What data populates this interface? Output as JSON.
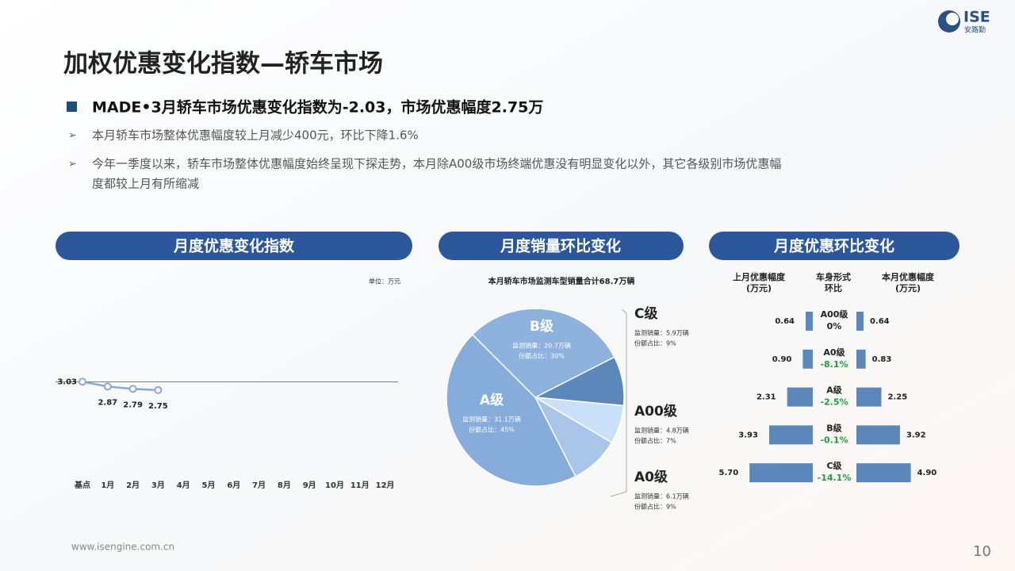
{
  "header": {
    "title": "加权优惠变化指数—轿车市场",
    "logo": "ISE",
    "logo_sub": "安路勤"
  },
  "headline": "MADE•3月轿车市场优惠变化指数为-2.03，市场优惠幅度2.75万",
  "bullets": [
    [
      "本月轿车市场整体优惠幅度较上月减少400元，环比下降1.6%"
    ],
    [
      "今年一季度以来，轿车市场整体优惠幅度始终呈现下探走势，本月除A00级市场终端优惠没有明显变化以外，其它各级别市场优惠幅",
      "度都较上月有所缩减"
    ]
  ],
  "footer": {
    "url": "www.isengine.com.cn",
    "page": "10"
  },
  "chart_data": [
    {
      "type": "line",
      "title": "月度优惠变化指数",
      "unit": "单位：万元",
      "categories": [
        "基点",
        "1月",
        "2月",
        "3月",
        "4月",
        "5月",
        "6月",
        "7月",
        "8月",
        "9月",
        "10月",
        "11月",
        "12月"
      ],
      "values": [
        3.03,
        2.87,
        2.79,
        2.75,
        null,
        null,
        null,
        null,
        null,
        null,
        null,
        null,
        null
      ],
      "color": "#8aa8d0",
      "ylim": [
        0,
        6.4
      ]
    },
    {
      "type": "pie",
      "title": "月度销量环比变化",
      "subtitle": "本月轿车市场监测车型销量合计68.7万辆",
      "categories": [
        "C级",
        "A00级",
        "A0级",
        "A级",
        "B级"
      ],
      "values": [
        9,
        7,
        9,
        45,
        30
      ],
      "value_labels": [
        "份额占比：9%",
        "份额占比：7%",
        "份额占比：9%",
        "份额占比：45%",
        "份额占比：30%"
      ],
      "volume_labels": [
        "监测销量：5.9万辆",
        "监测销量：4.8万辆",
        "监测销量：6.1万辆",
        "监测销量：31.1万辆",
        "监测销量：20.7万辆"
      ],
      "colors": [
        "#5b87bb",
        "#c9e0f7",
        "#a9c6e8",
        "#86acdc",
        "#8db2de"
      ]
    },
    {
      "type": "butterfly",
      "title": "月度优惠环比变化",
      "column_headers": [
        [
          "上月优惠幅度",
          "(万元)"
        ],
        [
          "车身形式",
          "环比"
        ],
        [
          "本月优惠幅度",
          "(万元)"
        ]
      ],
      "categories": [
        "A00级",
        "A0级",
        "A级",
        "B级",
        "C级"
      ],
      "series": [
        {
          "name": "上月优惠幅度",
          "color": "#5b87bb",
          "values": [
            0.64,
            0.9,
            2.31,
            3.93,
            5.7
          ],
          "value_labels": [
            "0.64",
            "0.90",
            "2.31",
            "3.93",
            "5.70"
          ]
        },
        {
          "name": "本月优惠幅度",
          "color": "#5b87bb",
          "values": [
            0.64,
            0.83,
            2.25,
            3.92,
            4.9
          ],
          "value_labels": [
            "0.64",
            "0.83",
            "2.25",
            "3.92",
            "4.90"
          ]
        }
      ],
      "changes": [
        0,
        -8.1,
        -2.5,
        -0.1,
        -14.1
      ],
      "change_labels": [
        "0%",
        "-8.1%",
        "-2.5%",
        "-0.1%",
        "-14.1%"
      ],
      "negative_color": "#1e9e3a",
      "xlim": [
        0,
        6
      ]
    }
  ]
}
